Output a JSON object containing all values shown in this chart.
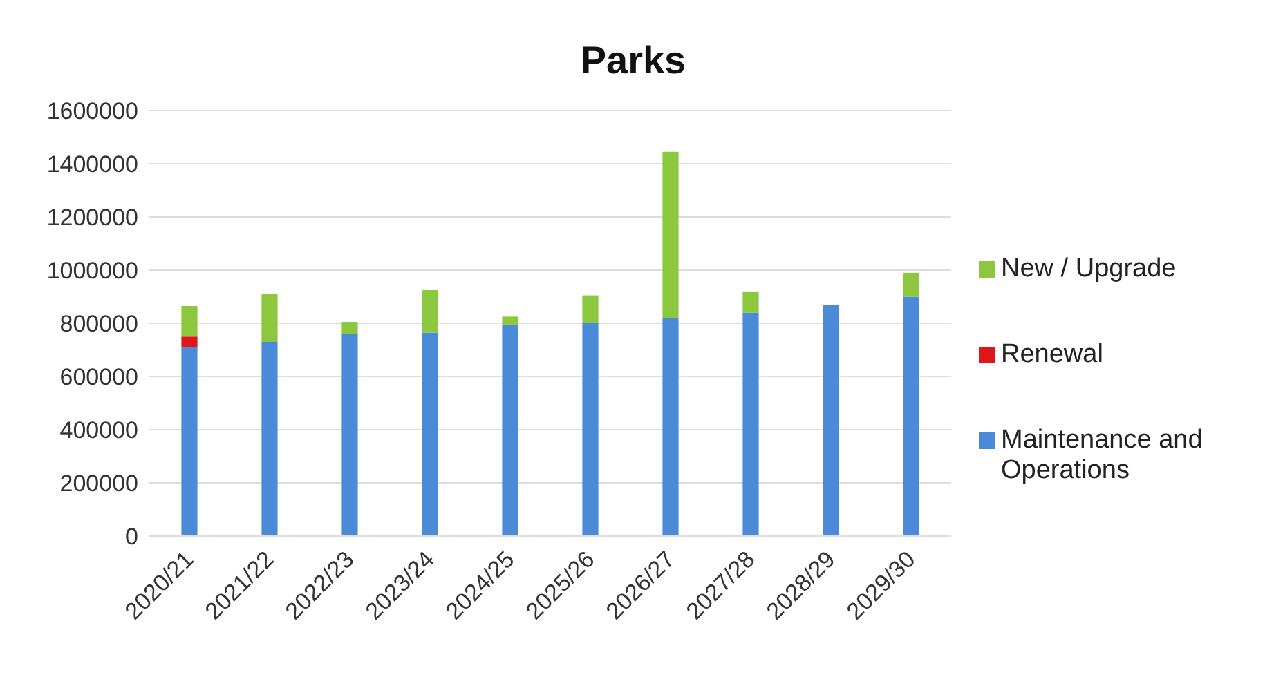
{
  "chart_data": {
    "type": "bar",
    "title": "Parks",
    "stacked": true,
    "categories": [
      "2020/21",
      "2021/22",
      "2022/23",
      "2023/24",
      "2024/25",
      "2025/26",
      "2026/27",
      "2027/28",
      "2028/29",
      "2029/30"
    ],
    "series": [
      {
        "name": "Maintenance and Operations",
        "color": "#4a8ad8",
        "values": [
          710000,
          730000,
          760000,
          765000,
          795000,
          800000,
          820000,
          840000,
          870000,
          900000
        ]
      },
      {
        "name": "Renewal",
        "color": "#e0161b",
        "values": [
          40000,
          0,
          0,
          0,
          0,
          0,
          0,
          0,
          0,
          0
        ]
      },
      {
        "name": "New / Upgrade",
        "color": "#8dc63f",
        "values": [
          115000,
          180000,
          45000,
          160000,
          30000,
          105000,
          625000,
          80000,
          0,
          90000
        ]
      }
    ],
    "ylim": [
      0,
      1600000
    ],
    "yticks": [
      0,
      200000,
      400000,
      600000,
      800000,
      1000000,
      1200000,
      1400000,
      1600000
    ],
    "grid": "y",
    "legend": "right"
  }
}
